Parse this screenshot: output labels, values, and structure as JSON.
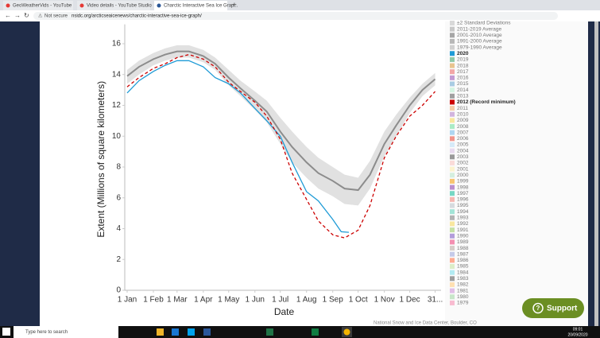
{
  "browser": {
    "tabs": [
      "GeoWeatherVids - YouTube",
      "Video details - YouTube Studio",
      "Charctic Interactive Sea Ice Grap..."
    ],
    "security": "Not secure",
    "url": "nsidc.org/arcticseaicenews/charctic-interactive-sea-ice-graph/"
  },
  "page": {
    "credit": "National Snow and Ice Data Center, Boulder, CO",
    "support": "Support"
  },
  "taskbar": {
    "search": "Type here to search",
    "time": "09:01",
    "date": "20/09/2020"
  },
  "chart_data": {
    "type": "line",
    "x_label": "Date",
    "y_label": "Extent (Millions of square kilometers)",
    "xlim": [
      1,
      372
    ],
    "ylim": [
      0,
      17
    ],
    "xticks": [
      {
        "value": 1,
        "label": "1 Jan"
      },
      {
        "value": 32,
        "label": "1 Feb"
      },
      {
        "value": 60,
        "label": "1 Mar"
      },
      {
        "value": 91,
        "label": "1 Apr"
      },
      {
        "value": 121,
        "label": "1 May"
      },
      {
        "value": 152,
        "label": "1 Jun"
      },
      {
        "value": 182,
        "label": "1 Jul"
      },
      {
        "value": 213,
        "label": "1 Aug"
      },
      {
        "value": 244,
        "label": "1 Sep"
      },
      {
        "value": 274,
        "label": "1 Oct"
      },
      {
        "value": 305,
        "label": "1 Nov"
      },
      {
        "value": 335,
        "label": "1 Dec"
      },
      {
        "value": 365,
        "label": "31..."
      }
    ],
    "yticks": [
      0,
      2,
      4,
      6,
      8,
      10,
      12,
      14,
      16
    ],
    "grid": false,
    "series": [
      {
        "color": "#8c8c8c",
        "x": [
          1,
          15,
          32,
          46,
          60,
          74,
          91,
          105,
          121,
          135,
          152,
          166,
          182,
          196,
          213,
          227,
          244,
          258,
          274,
          288,
          305,
          319,
          335,
          350,
          365
        ],
        "values": [
          13.9,
          14.5,
          15.0,
          15.3,
          15.5,
          15.5,
          15.2,
          14.7,
          13.8,
          13.1,
          12.3,
          11.6,
          10.3,
          9.3,
          8.3,
          7.6,
          7.1,
          6.6,
          6.5,
          7.5,
          9.5,
          10.7,
          12.0,
          13.0,
          13.7
        ]
      },
      {
        "name": "±2 Standard Deviations",
        "color": "#d9d9d9",
        "x": [
          1,
          15,
          32,
          46,
          60,
          74,
          91,
          105,
          121,
          135,
          152,
          166,
          182,
          196,
          213,
          227,
          244,
          258,
          274,
          288,
          305,
          319,
          335,
          350,
          365
        ],
        "high": [
          14.3,
          14.9,
          15.4,
          15.7,
          15.9,
          15.9,
          15.6,
          15.1,
          14.3,
          13.6,
          12.9,
          12.3,
          11.2,
          10.3,
          9.3,
          8.6,
          8.0,
          7.5,
          7.3,
          8.4,
          10.3,
          11.4,
          12.5,
          13.4,
          14.1
        ],
        "low": [
          13.4,
          14.0,
          14.6,
          14.9,
          15.1,
          15.1,
          14.8,
          14.3,
          13.3,
          12.6,
          11.7,
          10.9,
          9.5,
          8.3,
          7.3,
          6.6,
          6.1,
          5.6,
          5.5,
          6.6,
          8.7,
          10.0,
          11.5,
          12.6,
          13.3
        ]
      },
      {
        "name": "2011-2019 Average",
        "color": "#c8c8c8"
      },
      {
        "name": "2001-2010 Average",
        "color": "#a6a6a6"
      },
      {
        "name": "1991-2000 Average",
        "color": "#b8b8b8"
      },
      {
        "name": "1979-1990 Average",
        "color": "#d0d0d0"
      },
      {
        "name": "2020",
        "color": "#1f9bd6",
        "bold": true,
        "x": [
          1,
          15,
          32,
          46,
          60,
          74,
          91,
          105,
          121,
          135,
          152,
          166,
          182,
          196,
          213,
          227,
          244,
          254,
          263
        ],
        "values": [
          12.8,
          13.6,
          14.2,
          14.6,
          14.9,
          14.9,
          14.5,
          13.8,
          13.4,
          12.8,
          11.8,
          11.0,
          10.0,
          8.3,
          6.4,
          5.8,
          4.6,
          3.8,
          3.76
        ]
      },
      {
        "name": "2019",
        "color": "#8fc9a8"
      },
      {
        "name": "2018",
        "color": "#e8c48f"
      },
      {
        "name": "2017",
        "color": "#f2a6a6"
      },
      {
        "name": "2016",
        "color": "#c39bd3"
      },
      {
        "name": "2015",
        "color": "#a9cce3"
      },
      {
        "name": "2014",
        "color": "#d5f5e3"
      },
      {
        "name": "2013",
        "color": "#a0a0a0"
      },
      {
        "name": "2012 (Record minimum)",
        "color": "#cc0000",
        "bold": true,
        "dash": true,
        "x": [
          1,
          15,
          32,
          46,
          60,
          74,
          91,
          105,
          121,
          135,
          152,
          166,
          182,
          196,
          213,
          227,
          244,
          258,
          274,
          288,
          305,
          319,
          335,
          350,
          365
        ],
        "values": [
          13.2,
          13.8,
          14.4,
          14.7,
          15.1,
          15.3,
          15.0,
          14.5,
          13.5,
          12.9,
          12.2,
          11.3,
          9.8,
          7.6,
          5.9,
          4.5,
          3.6,
          3.4,
          3.9,
          5.5,
          8.6,
          10.0,
          11.3,
          12.0,
          12.9
        ]
      },
      {
        "name": "2011",
        "color": "#f5cba7"
      },
      {
        "name": "2010",
        "color": "#d2b4de"
      },
      {
        "name": "2009",
        "color": "#f9e79f"
      },
      {
        "name": "2008",
        "color": "#abebc6"
      },
      {
        "name": "2007",
        "color": "#aed6f1"
      },
      {
        "name": "2006",
        "color": "#f1948a"
      },
      {
        "name": "2005",
        "color": "#d6eaf8"
      },
      {
        "name": "2004",
        "color": "#e8daef"
      },
      {
        "name": "2003",
        "color": "#999999"
      },
      {
        "name": "2002",
        "color": "#fadbd8"
      },
      {
        "name": "2001",
        "color": "#fcf3cf"
      },
      {
        "name": "2000",
        "color": "#d4efdf"
      },
      {
        "name": "1999",
        "color": "#f8c471"
      },
      {
        "name": "1998",
        "color": "#bb8fce"
      },
      {
        "name": "1997",
        "color": "#76d7c4"
      },
      {
        "name": "1996",
        "color": "#f5b7b1"
      },
      {
        "name": "1995",
        "color": "#d6dbdf"
      },
      {
        "name": "1994",
        "color": "#a3e4d7"
      },
      {
        "name": "1993",
        "color": "#b3b3b3"
      },
      {
        "name": "1992",
        "color": "#f9e79f"
      },
      {
        "name": "1991",
        "color": "#c5e1a5"
      },
      {
        "name": "1990",
        "color": "#b39ddb"
      },
      {
        "name": "1989",
        "color": "#f48fb1"
      },
      {
        "name": "1988",
        "color": "#d7ccc8"
      },
      {
        "name": "1987",
        "color": "#c5cae9"
      },
      {
        "name": "1986",
        "color": "#ffab91"
      },
      {
        "name": "1985",
        "color": "#dcedc8"
      },
      {
        "name": "1984",
        "color": "#b2ebf2"
      },
      {
        "name": "1983",
        "color": "#9e9e9e"
      },
      {
        "name": "1982",
        "color": "#ffe0b2"
      },
      {
        "name": "1981",
        "color": "#e1bee7"
      },
      {
        "name": "1980",
        "color": "#c8e6c9"
      },
      {
        "name": "1979",
        "color": "#f8bbd0"
      }
    ]
  }
}
